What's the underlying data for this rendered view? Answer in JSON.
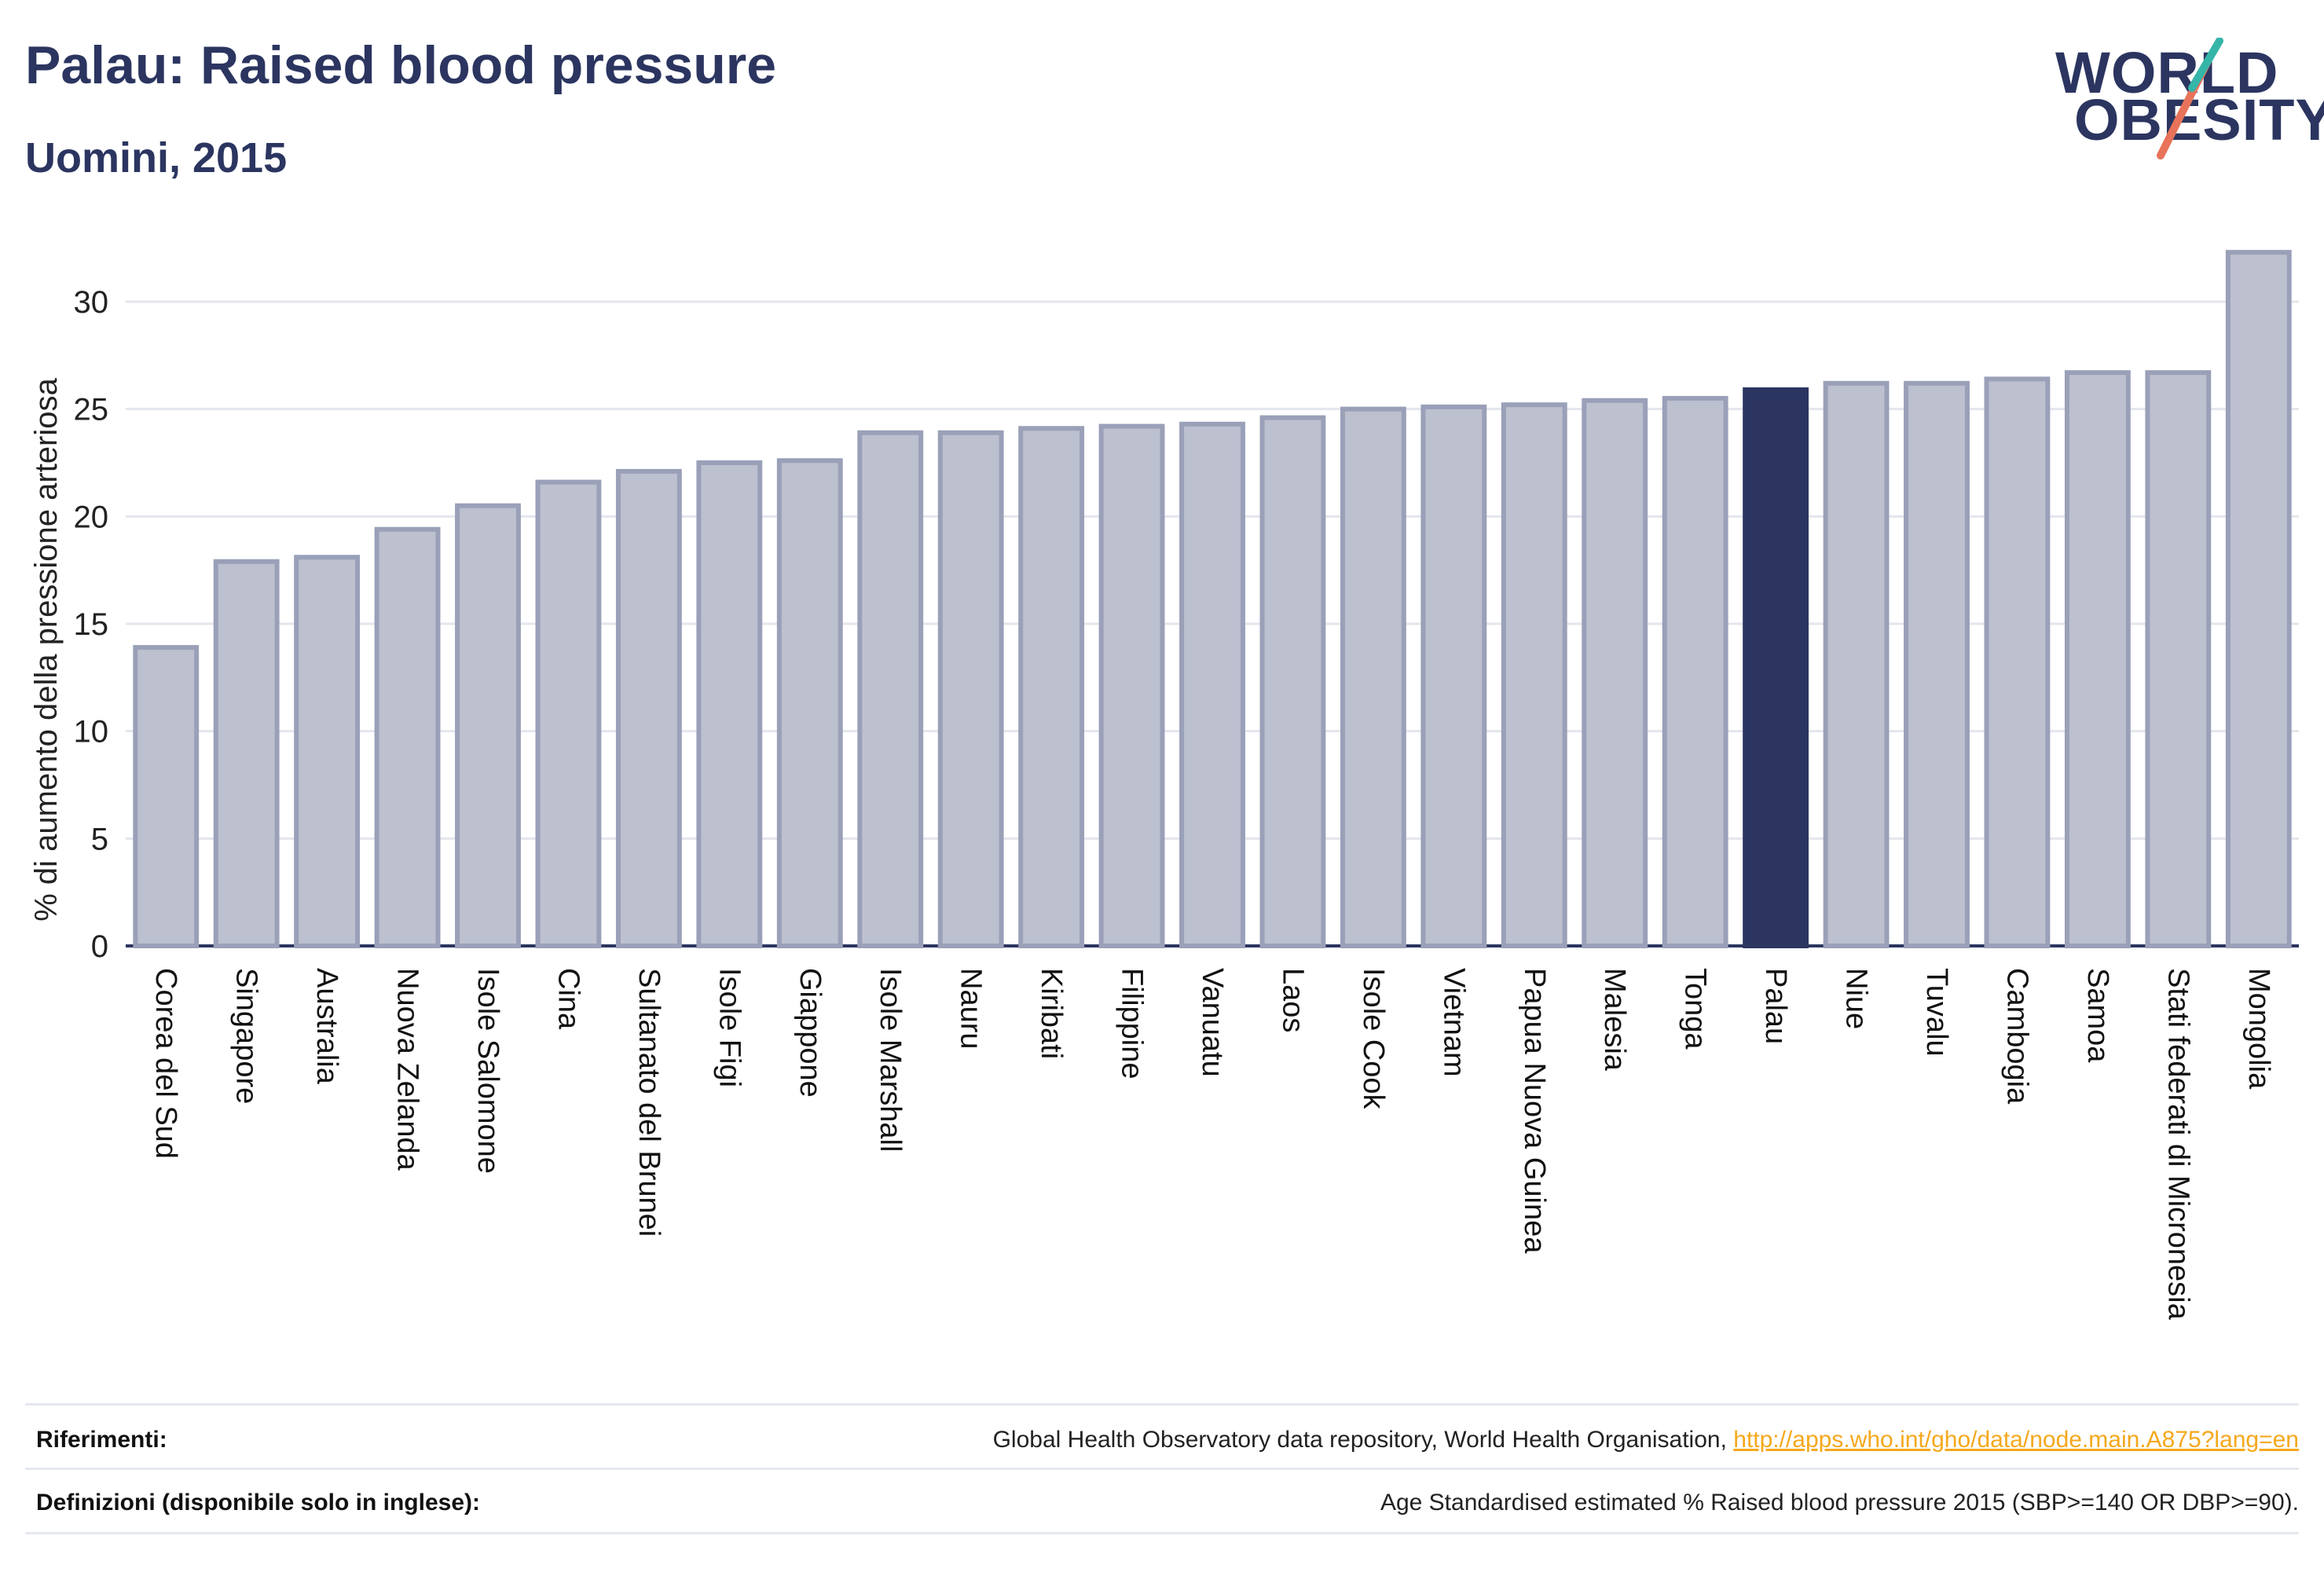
{
  "header": {
    "title": "Palau: Raised blood pressure",
    "subtitle": "Uomini, 2015"
  },
  "logo": {
    "line1": "WORLD",
    "line2": "OBESITY"
  },
  "chart_data": {
    "type": "bar",
    "ylabel": "% di aumento della pressione arteriosa",
    "ylim": [
      0,
      32.5
    ],
    "yticks": [
      0,
      5,
      10,
      15,
      20,
      25,
      30
    ],
    "grid": true,
    "highlight": "Palau",
    "colors": {
      "bar": "#bcc0cf",
      "bar_border": "#9aa0b8",
      "highlight": "#2b3560",
      "grid": "#e4e6ee",
      "axis": "#2b3560"
    },
    "categories": [
      "Corea del Sud",
      "Singapore",
      "Australia",
      "Nuova Zelanda",
      "Isole Salomone",
      "Cina",
      "Sultanato del Brunei",
      "Isole Figi",
      "Giappone",
      "Isole Marshall",
      "Nauru",
      "Kiribati",
      "Filippine",
      "Vanuatu",
      "Laos",
      "Isole Cook",
      "Vietnam",
      "Papua Nuova Guinea",
      "Malesia",
      "Tonga",
      "Palau",
      "Niue",
      "Tuvalu",
      "Cambogia",
      "Samoa",
      "Stati federati di Micronesia",
      "Mongolia"
    ],
    "values": [
      13.9,
      17.9,
      18.1,
      19.4,
      20.5,
      21.6,
      22.1,
      22.5,
      22.6,
      23.9,
      23.9,
      24.1,
      24.2,
      24.3,
      24.6,
      25.0,
      25.1,
      25.2,
      25.4,
      25.5,
      25.9,
      26.2,
      26.2,
      26.4,
      26.7,
      26.7,
      32.3
    ]
  },
  "footer": {
    "references_label": "Riferimenti:",
    "references_text": "Global Health Observatory data repository, World Health Organisation, ",
    "references_link": "http://apps.who.int/gho/data/node.main.A875?lang=en",
    "definitions_label": "Definizioni (disponibile solo in inglese):",
    "definitions_text": "Age Standardised estimated % Raised blood pressure 2015 (SBP>=140 OR DBP>=90)."
  }
}
